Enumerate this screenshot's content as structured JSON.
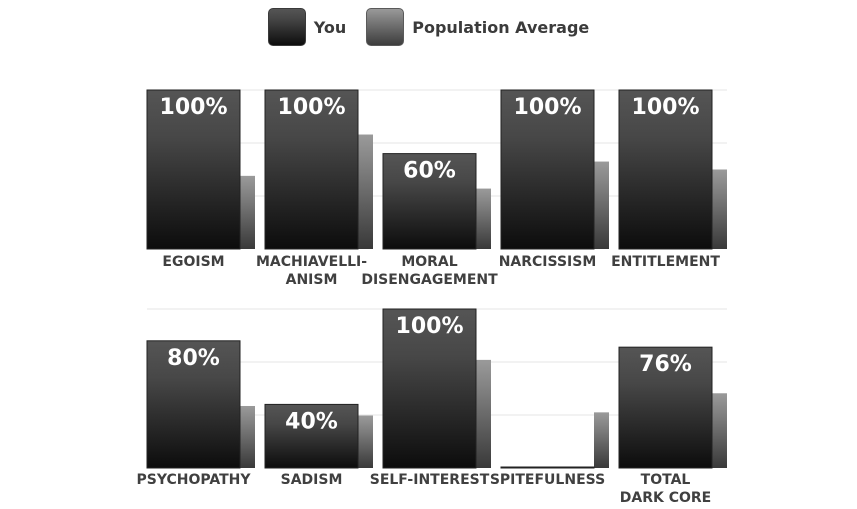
{
  "legend": {
    "you_label": "You",
    "avg_label": "Population Average"
  },
  "colors": {
    "you_top": "#545454",
    "you_bottom": "#0d0d0d",
    "avg_top": "#9a9a9a",
    "avg_bottom": "#3a3a3a",
    "grid": "#e6e6e6",
    "label": "#404040"
  },
  "chart_data": [
    {
      "type": "bar",
      "title": "",
      "xlabel": "",
      "ylabel": "",
      "ylim": [
        0,
        100
      ],
      "grid": true,
      "legend_position": "top-center",
      "categories": [
        [
          "EGOISM"
        ],
        [
          "MACHIAVELLI-",
          "ANISM"
        ],
        [
          "MORAL",
          "DISENGAGEMENT"
        ],
        [
          "NARCISSISM"
        ],
        [
          "ENTITLEMENT"
        ]
      ],
      "series": [
        {
          "name": "You",
          "values": [
            100,
            100,
            60,
            100,
            100
          ],
          "labels": [
            "100%",
            "100%",
            "60%",
            "100%",
            "100%"
          ]
        },
        {
          "name": "Population Average",
          "values": [
            46,
            72,
            38,
            55,
            50
          ]
        }
      ]
    },
    {
      "type": "bar",
      "title": "",
      "xlabel": "",
      "ylabel": "",
      "ylim": [
        0,
        100
      ],
      "grid": true,
      "legend_position": "top-center",
      "categories": [
        [
          "PSYCHOPATHY"
        ],
        [
          "SADISM"
        ],
        [
          "SELF-INTEREST"
        ],
        [
          "SPITEFULNESS"
        ],
        [
          "TOTAL",
          "DARK CORE"
        ]
      ],
      "series": [
        {
          "name": "You",
          "values": [
            80,
            40,
            100,
            0,
            76
          ],
          "labels": [
            "80%",
            "40%",
            "100%",
            "0%",
            "76%"
          ]
        },
        {
          "name": "Population Average",
          "values": [
            39,
            33,
            68,
            35,
            47
          ]
        }
      ]
    }
  ]
}
